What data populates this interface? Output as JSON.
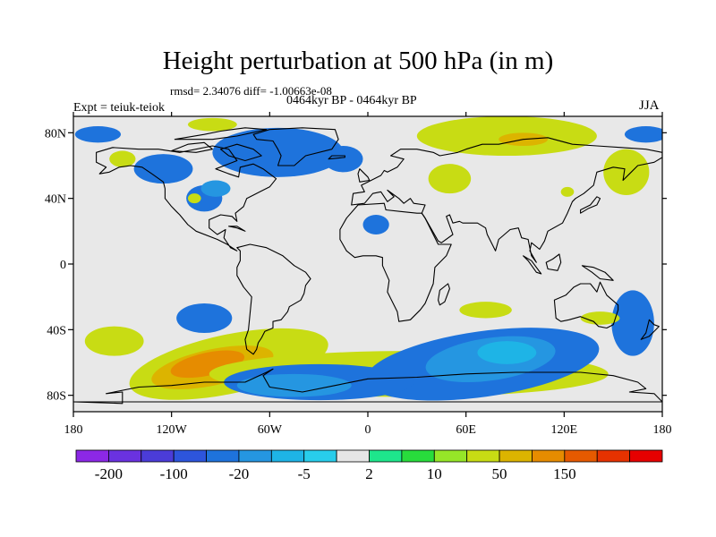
{
  "title": "Height perturbation at 500 hPa (in m)",
  "stats": "rmsd= 2.34076 diff= -1.00663e-08",
  "periods": "0464kyr BP - 0464kyr BP",
  "experiment": "Expt = teiuk-teiok",
  "season": "JJA",
  "map": {
    "background_color": "#e8e8e8",
    "lon_range": [
      -180,
      180
    ],
    "lat_range": [
      -90,
      90
    ],
    "lon_ticks": [
      {
        "value": -180,
        "label": "180"
      },
      {
        "value": -120,
        "label": "120W"
      },
      {
        "value": -60,
        "label": "60W"
      },
      {
        "value": 0,
        "label": "0"
      },
      {
        "value": 60,
        "label": "60E"
      },
      {
        "value": 120,
        "label": "120E"
      },
      {
        "value": 180,
        "label": "180"
      }
    ],
    "lat_ticks": [
      {
        "value": 80,
        "label": "80N"
      },
      {
        "value": 40,
        "label": "40N"
      },
      {
        "value": 0,
        "label": "0"
      },
      {
        "value": -40,
        "label": "40S"
      },
      {
        "value": -80,
        "label": "80S"
      }
    ],
    "anomalies": [
      {
        "lon": -165,
        "lat": 79,
        "rlon": 14,
        "rlat": 5,
        "level": -4
      },
      {
        "lon": 170,
        "lat": 79,
        "rlon": 13,
        "rlat": 5,
        "level": -4
      },
      {
        "lon": -125,
        "lat": 58,
        "rlon": 18,
        "rlat": 9,
        "level": -4
      },
      {
        "lon": -55,
        "lat": 68,
        "rlon": 40,
        "rlat": 15,
        "level": -4
      },
      {
        "lon": -100,
        "lat": 40,
        "rlon": 11,
        "rlat": 8,
        "level": -4
      },
      {
        "lon": -93,
        "lat": 46,
        "rlon": 9,
        "rlat": 5,
        "level": -3
      },
      {
        "lon": -15,
        "lat": 64,
        "rlon": 12,
        "rlat": 8,
        "level": -4
      },
      {
        "lon": 5,
        "lat": 24,
        "rlon": 8,
        "rlat": 6,
        "level": -4
      },
      {
        "lon": -95,
        "lat": 85,
        "rlon": 15,
        "rlat": 4,
        "level": 4
      },
      {
        "lon": 85,
        "lat": 78,
        "rlon": 55,
        "rlat": 12,
        "level": 4
      },
      {
        "lon": 95,
        "lat": 76,
        "rlon": 15,
        "rlat": 4,
        "level": 5
      },
      {
        "lon": 50,
        "lat": 52,
        "rlon": 13,
        "rlat": 9,
        "level": 4
      },
      {
        "lon": 158,
        "lat": 56,
        "rlon": 14,
        "rlat": 14,
        "level": 4
      },
      {
        "lon": -150,
        "lat": 64,
        "rlon": 8,
        "rlat": 5,
        "level": 4
      },
      {
        "lon": -106,
        "lat": 40,
        "rlon": 4,
        "rlat": 3,
        "level": 4
      },
      {
        "lon": 122,
        "lat": 44,
        "rlon": 4,
        "rlat": 3,
        "level": 4
      },
      {
        "lon": -100,
        "lat": -33,
        "rlon": 17,
        "rlat": 9,
        "level": -4
      },
      {
        "lon": 162,
        "lat": -36,
        "rlon": 13,
        "rlat": 20,
        "level": -4
      },
      {
        "lon": -155,
        "lat": -47,
        "rlon": 18,
        "rlat": 9,
        "level": 4
      },
      {
        "lon": 72,
        "lat": -28,
        "rlon": 16,
        "rlat": 5,
        "level": 4
      },
      {
        "lon": 142,
        "lat": -33,
        "rlon": 12,
        "rlat": 4,
        "level": 4
      },
      {
        "lon": -85,
        "lat": -61,
        "rlon": 62,
        "rlat": 18,
        "level": 4,
        "rot": -12
      },
      {
        "lon": -95,
        "lat": -63,
        "rlon": 38,
        "rlat": 11,
        "level": 5,
        "rot": -12
      },
      {
        "lon": -98,
        "lat": -61,
        "rlon": 23,
        "rlat": 7,
        "level": 6,
        "rot": -12
      },
      {
        "lon": 25,
        "lat": -67,
        "rlon": 122,
        "rlat": 14,
        "level": 4
      },
      {
        "lon": 70,
        "lat": -61,
        "rlon": 72,
        "rlat": 20,
        "level": -4,
        "rot": -8
      },
      {
        "lon": -30,
        "lat": -72,
        "rlon": 58,
        "rlat": 11,
        "level": -4
      },
      {
        "lon": 75,
        "lat": -58,
        "rlon": 40,
        "rlat": 13,
        "level": -3,
        "rot": -8
      },
      {
        "lon": 85,
        "lat": -54,
        "rlon": 18,
        "rlat": 7,
        "level": -2
      },
      {
        "lon": -45,
        "lat": -74,
        "rlon": 35,
        "rlat": 7,
        "level": -3
      }
    ]
  },
  "colorbar": {
    "colors": [
      "#8c28e6",
      "#6a32e0",
      "#4b3cd8",
      "#2d55dc",
      "#1e73dc",
      "#2596e1",
      "#1eb4e6",
      "#28cdeb",
      "#e6e6e6",
      "#1ee68c",
      "#28dc3c",
      "#96e628",
      "#c8dc14",
      "#dcb400",
      "#e68c00",
      "#e65a00",
      "#e63200",
      "#e60000"
    ],
    "labels": [
      {
        "text": "-200",
        "boundary": 1
      },
      {
        "text": "-100",
        "boundary": 3
      },
      {
        "text": "-20",
        "boundary": 5
      },
      {
        "text": "-5",
        "boundary": 7
      },
      {
        "text": "2",
        "boundary": 9
      },
      {
        "text": "10",
        "boundary": 11
      },
      {
        "text": "50",
        "boundary": 13
      },
      {
        "text": "150",
        "boundary": 15
      }
    ]
  }
}
